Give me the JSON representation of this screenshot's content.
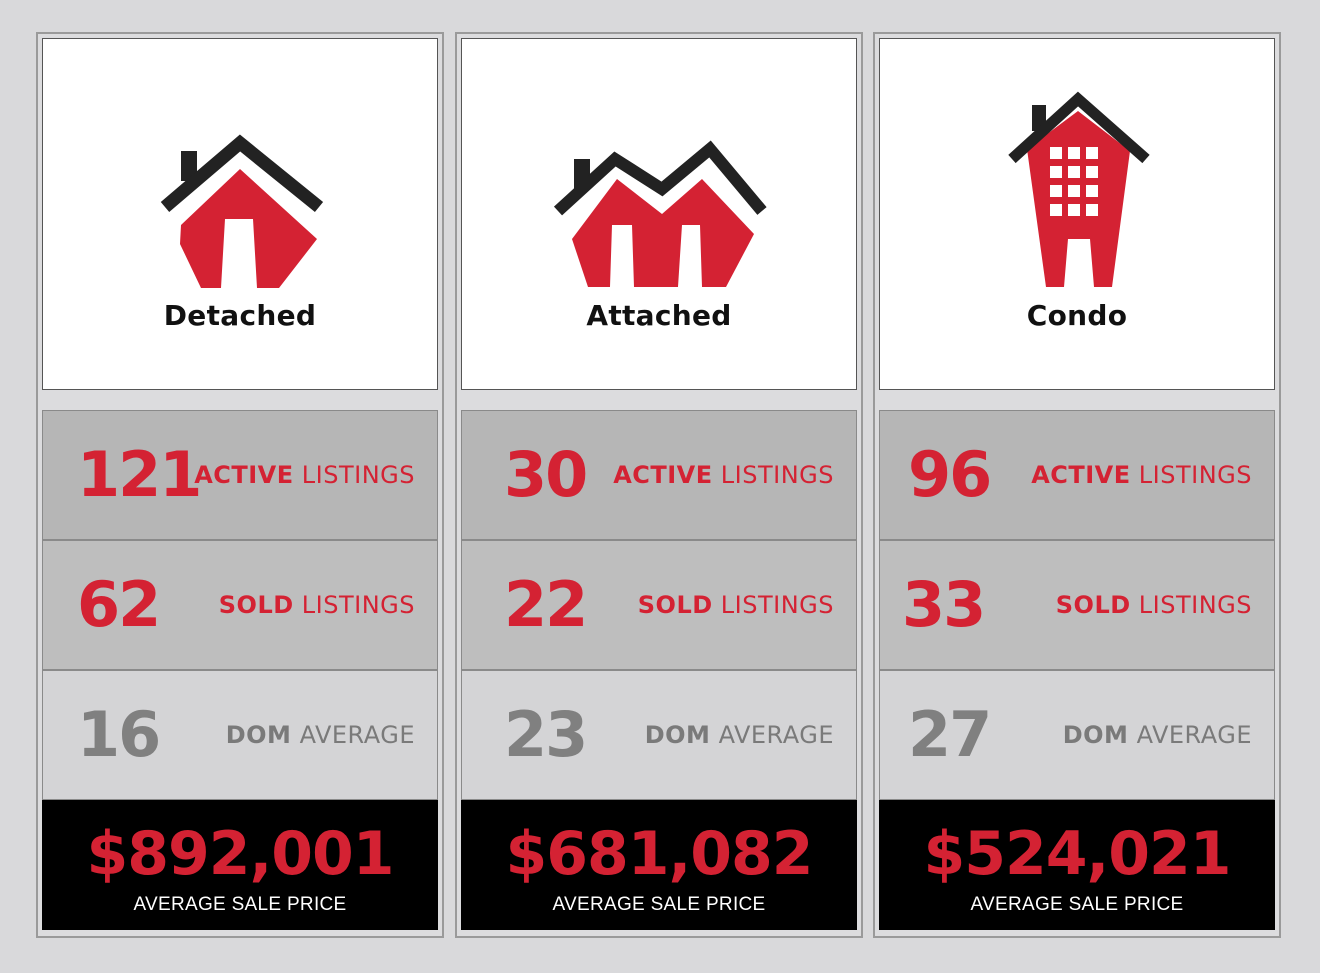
{
  "colors": {
    "accent_red": "#d42233",
    "grey_text": "#808080",
    "background": "#d9d9db",
    "price_bg": "#000000"
  },
  "cards": [
    {
      "type": "Detached",
      "icon": "detached-house-icon",
      "active": {
        "value": "121",
        "bold": "ACTIVE",
        "rest": " LISTINGS"
      },
      "sold": {
        "value": "62",
        "bold": "SOLD",
        "rest": " LISTINGS"
      },
      "dom": {
        "value": "16",
        "bold": "DOM",
        "rest": " AVERAGE"
      },
      "price": {
        "value": "$892,001",
        "label": "AVERAGE SALE PRICE"
      }
    },
    {
      "type": "Attached",
      "icon": "attached-house-icon",
      "active": {
        "value": "30",
        "bold": "ACTIVE",
        "rest": " LISTINGS"
      },
      "sold": {
        "value": "22",
        "bold": "SOLD",
        "rest": " LISTINGS"
      },
      "dom": {
        "value": "23",
        "bold": "DOM",
        "rest": " AVERAGE"
      },
      "price": {
        "value": "$681,082",
        "label": "AVERAGE SALE PRICE"
      }
    },
    {
      "type": "Condo",
      "icon": "condo-building-icon",
      "active": {
        "value": "96",
        "bold": "ACTIVE",
        "rest": " LISTINGS"
      },
      "sold": {
        "value": "33",
        "bold": "SOLD",
        "rest": " LISTINGS"
      },
      "dom": {
        "value": "27",
        "bold": "DOM",
        "rest": " AVERAGE"
      },
      "price": {
        "value": "$524,021",
        "label": "AVERAGE SALE PRICE"
      }
    }
  ]
}
